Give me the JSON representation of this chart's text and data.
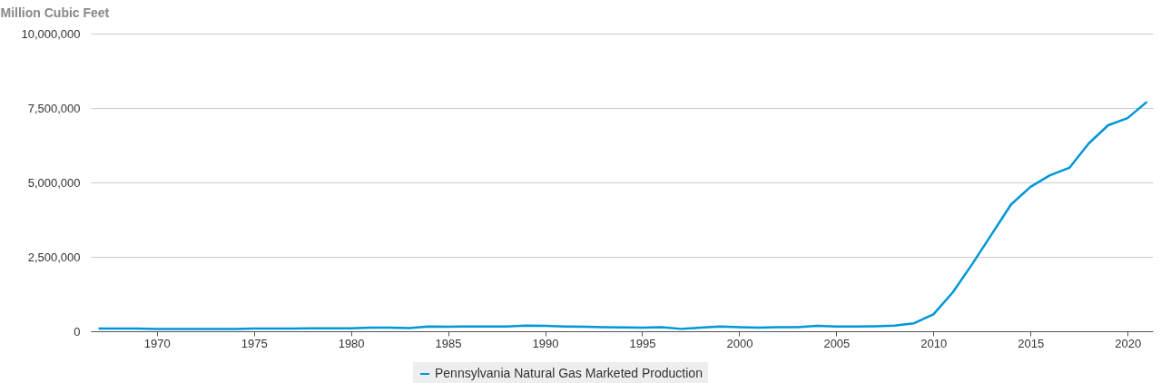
{
  "chart_data": {
    "type": "line",
    "ylabel": "Million Cubic Feet",
    "x": [
      1967,
      1968,
      1969,
      1970,
      1971,
      1972,
      1973,
      1974,
      1975,
      1976,
      1977,
      1978,
      1979,
      1980,
      1981,
      1982,
      1983,
      1984,
      1985,
      1986,
      1987,
      1988,
      1989,
      1990,
      1991,
      1992,
      1993,
      1994,
      1995,
      1996,
      1997,
      1998,
      1999,
      2000,
      2001,
      2002,
      2003,
      2004,
      2005,
      2006,
      2007,
      2008,
      2009,
      2010,
      2011,
      2012,
      2013,
      2014,
      2015,
      2016,
      2017,
      2018,
      2019,
      2020,
      2021
    ],
    "series": [
      {
        "name": "Pennsylvania Natural Gas Marketed Production",
        "color": "#0096d7",
        "values": [
          90000,
          90000,
          90000,
          80000,
          80000,
          80000,
          80000,
          80000,
          90000,
          90000,
          90000,
          100000,
          100000,
          100000,
          120000,
          120000,
          110000,
          160000,
          150000,
          160000,
          160000,
          160000,
          190000,
          180000,
          160000,
          150000,
          140000,
          130000,
          120000,
          140000,
          80000,
          120000,
          160000,
          140000,
          120000,
          140000,
          140000,
          180000,
          160000,
          160000,
          170000,
          190000,
          270000,
          570000,
          1310000,
          2260000,
          3260000,
          4260000,
          4850000,
          5240000,
          5490000,
          6310000,
          6920000,
          7160000,
          7710000
        ]
      }
    ],
    "xlim": [
      1966.6,
      2021.3
    ],
    "xticks": [
      1970,
      1975,
      1980,
      1985,
      1990,
      1995,
      2000,
      2005,
      2010,
      2015,
      2020
    ],
    "ylim": [
      0,
      10000000
    ],
    "yticks": [
      0,
      {
        "value": 2500000,
        "label": "2,500,000"
      },
      {
        "value": 5000000,
        "label": "5,000,000"
      },
      {
        "value": 7500000,
        "label": "7,500,000"
      },
      {
        "value": 10000000,
        "label": "10,000,000"
      }
    ],
    "grid": "y",
    "legend": "bottom",
    "marker": "none",
    "line_style": "solid"
  }
}
